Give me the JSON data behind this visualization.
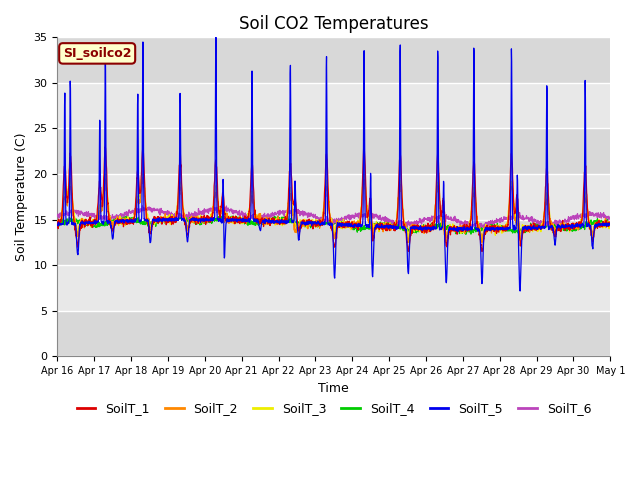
{
  "title": "Soil CO2 Temperatures",
  "ylabel": "Soil Temperature (C)",
  "xlabel": "Time",
  "annotation": "SI_soilco2",
  "ylim": [
    0,
    35
  ],
  "series_labels": [
    "SoilT_1",
    "SoilT_2",
    "SoilT_3",
    "SoilT_4",
    "SoilT_5",
    "SoilT_6"
  ],
  "series_colors": [
    "#dd0000",
    "#ff8800",
    "#eeee00",
    "#00cc00",
    "#0000ee",
    "#bb44bb"
  ],
  "n_days": 15,
  "x_tick_labels": [
    "Apr 16",
    "Apr 17",
    "Apr 18",
    "Apr 19",
    "Apr 20",
    "Apr 21",
    "Apr 22",
    "Apr 23",
    "Apr 24",
    "Apr 25",
    "Apr 26",
    "Apr 27",
    "Apr 28",
    "Apr 29",
    "Apr 30",
    "May 1"
  ],
  "title_fontsize": 12,
  "axis_label_fontsize": 9,
  "legend_fontsize": 9,
  "band_colors": [
    "#d8d8d8",
    "#e8e8e8"
  ],
  "bg_color": "#ffffff"
}
